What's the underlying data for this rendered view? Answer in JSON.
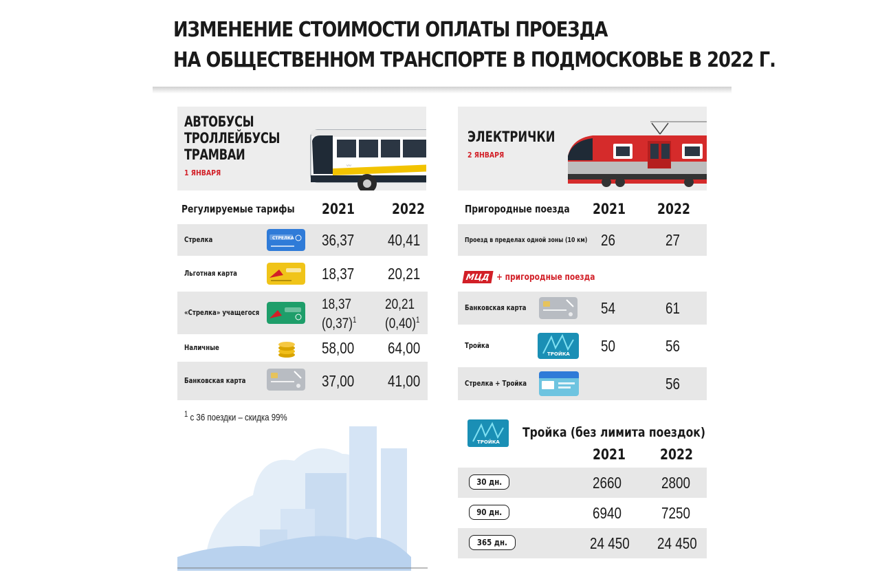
{
  "title": {
    "line1": "ИЗМЕНЕНИЕ СТОИМОСТИ ОПЛАТЫ ПРОЕЗДА",
    "line2": "НА ОБЩЕСТВЕННОМ ТРАНСПОРТЕ В ПОДМОСКОВЬЕ В 2022 Г."
  },
  "left": {
    "title_lines": [
      "АВТОБУСЫ",
      "ТРОЛЛЕЙБУСЫ",
      "ТРАМВАИ"
    ],
    "date": "1 ЯНВАРЯ",
    "table_header": "Регулируемые тарифы",
    "year1": "2021",
    "year2": "2022",
    "rows": [
      {
        "label": "Стрелка",
        "v2021": "36,37",
        "v2022": "40,41",
        "icon": "strelka-card-icon"
      },
      {
        "label": "Льготная карта",
        "v2021": "18,37",
        "v2022": "20,21",
        "icon": "discount-card-icon"
      },
      {
        "label": "«Стрелка» учащегося",
        "v2021": "18,37",
        "v2021b": "(0,37)",
        "v2022": "20,21",
        "v2022b": "(0,40)",
        "sup": "1",
        "icon": "student-card-icon"
      },
      {
        "label": "Наличные",
        "v2021": "58,00",
        "v2022": "64,00",
        "icon": "coins-icon"
      },
      {
        "label": "Банковская карта",
        "v2021": "37,00",
        "v2022": "41,00",
        "icon": "bank-card-icon"
      }
    ],
    "footnote_mark": "1",
    "footnote": "с 36 поездки – скидка 99%"
  },
  "right": {
    "title": "ЭЛЕКТРИЧКИ",
    "date": "2 ЯНВАРЯ",
    "table_header": "Пригородные поезда",
    "year1": "2021",
    "year2": "2022",
    "zone_row": {
      "label": "Проезд в пределах одной зоны (10 км)",
      "v2021": "26",
      "v2022": "27"
    },
    "mcd_logo": "МЦД",
    "mcd_text": "+ пригородные поезда",
    "mcd_rows": [
      {
        "label": "Банковская карта",
        "v2021": "54",
        "v2022": "61",
        "icon": "bank-card-icon"
      },
      {
        "label": "Тройка",
        "v2021": "50",
        "v2022": "56",
        "icon": "troika-card-icon"
      },
      {
        "label": "Стрелка + Тройка",
        "v2021": "",
        "v2022": "56",
        "icon": "strelka-troika-card-icon"
      }
    ],
    "troika_title": "Тройка (без лимита поездок)",
    "troika_rows": [
      {
        "period": "30 дн.",
        "v2021": "2660",
        "v2022": "2800"
      },
      {
        "period": "90 дн.",
        "v2021": "6940",
        "v2022": "7250"
      },
      {
        "period": "365 дн.",
        "v2021": "24 450",
        "v2022": "24 450"
      }
    ],
    "card_text_troika": "ТРОЙКА",
    "card_text_strelka": "СТРЕЛКА"
  },
  "colors": {
    "accent_red": "#d21f27",
    "row_gray": "#e7e7e7",
    "header_gray": "#ededed",
    "text": "#1a1a1a"
  }
}
